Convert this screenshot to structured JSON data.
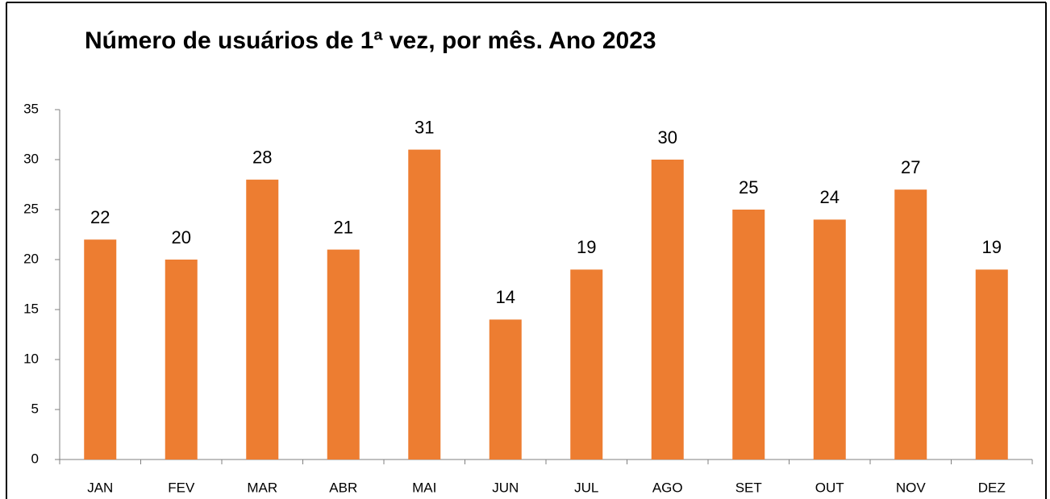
{
  "chart_data": {
    "type": "bar",
    "title": "Número de usuários de 1ª vez, por mês. Ano 2023",
    "categories": [
      "JAN",
      "FEV",
      "MAR",
      "ABR",
      "MAI",
      "JUN",
      "JUL",
      "AGO",
      "SET",
      "OUT",
      "NOV",
      "DEZ"
    ],
    "values": [
      22,
      20,
      28,
      21,
      31,
      14,
      19,
      30,
      25,
      24,
      27,
      19
    ],
    "color": "#ed7d31",
    "ylim": [
      0,
      35
    ],
    "yticks": [
      0,
      5,
      10,
      15,
      20,
      25,
      30,
      35
    ]
  }
}
